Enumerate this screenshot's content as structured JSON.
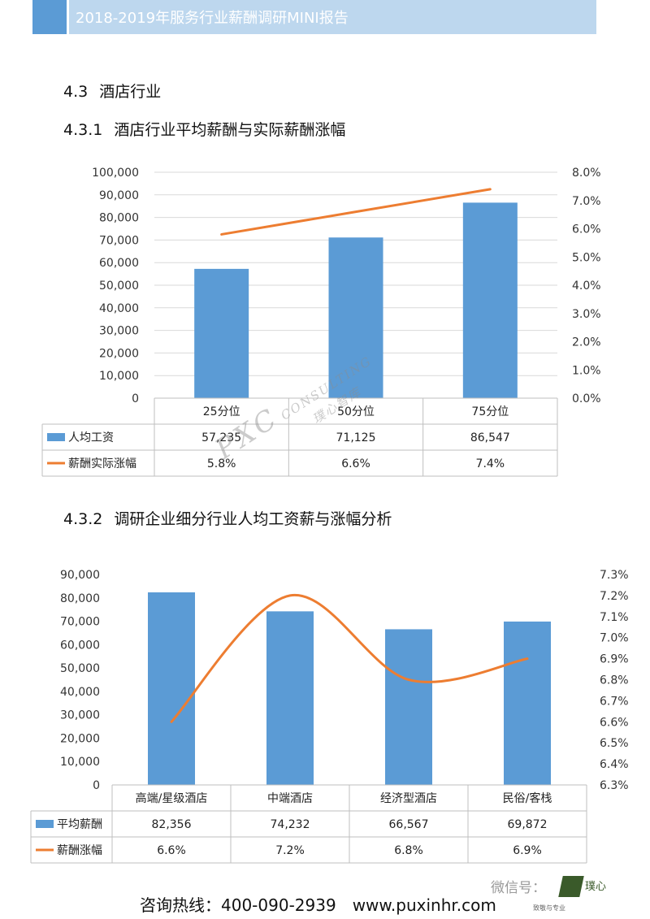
{
  "header": {
    "title": "2018-2019年服务行业薪酬调研MINI报告"
  },
  "section": {
    "num": "4.3",
    "title": "酒店行业"
  },
  "sub1": {
    "num": "4.3.1",
    "title": "酒店行业平均薪酬与实际薪酬涨幅"
  },
  "sub2": {
    "num": "4.3.2",
    "title": "调研企业细分行业人均工资薪与涨幅分析"
  },
  "chart_data": [
    {
      "type": "bar",
      "categories": [
        "25分位",
        "50分位",
        "75分位"
      ],
      "series": [
        {
          "name": "人均工资",
          "type": "bar",
          "axis": "left",
          "values": [
            57235,
            71125,
            86547
          ],
          "labels": [
            "57,235",
            "71,125",
            "86,547"
          ],
          "color": "#5b9bd5"
        },
        {
          "name": "薪酬实际涨幅",
          "type": "line",
          "axis": "right",
          "values": [
            5.8,
            6.6,
            7.4
          ],
          "labels": [
            "5.8%",
            "6.6%",
            "7.4%"
          ],
          "color": "#ed7d31"
        }
      ],
      "ylim": [
        0,
        100000
      ],
      "yticks": [
        "0",
        "10,000",
        "20,000",
        "30,000",
        "40,000",
        "50,000",
        "60,000",
        "70,000",
        "80,000",
        "90,000",
        "100,000"
      ],
      "y2lim": [
        0,
        8
      ],
      "y2ticks": [
        "0.0%",
        "1.0%",
        "2.0%",
        "3.0%",
        "4.0%",
        "5.0%",
        "6.0%",
        "7.0%",
        "8.0%"
      ],
      "grid": true,
      "legend": "data-table"
    },
    {
      "type": "bar",
      "categories": [
        "高端/星级酒店",
        "中端酒店",
        "经济型酒店",
        "民俗/客栈"
      ],
      "series": [
        {
          "name": "平均薪酬",
          "type": "bar",
          "axis": "left",
          "values": [
            82356,
            74232,
            66567,
            69872
          ],
          "labels": [
            "82,356",
            "74,232",
            "66,567",
            "69,872"
          ],
          "color": "#5b9bd5"
        },
        {
          "name": "薪酬涨幅",
          "type": "line",
          "axis": "right",
          "smooth": true,
          "values": [
            6.6,
            7.2,
            6.8,
            6.9
          ],
          "labels": [
            "6.6%",
            "7.2%",
            "6.8%",
            "6.9%"
          ],
          "color": "#ed7d31"
        }
      ],
      "ylim": [
        0,
        90000
      ],
      "yticks": [
        "0",
        "10,000",
        "20,000",
        "30,000",
        "40,000",
        "50,000",
        "60,000",
        "70,000",
        "80,000",
        "90,000"
      ],
      "y2lim": [
        6.3,
        7.3
      ],
      "y2ticks": [
        "6.3%",
        "6.4%",
        "6.5%",
        "6.6%",
        "6.7%",
        "6.8%",
        "6.9%",
        "7.0%",
        "7.1%",
        "7.2%",
        "7.3%"
      ],
      "grid": false,
      "legend": "data-table"
    }
  ],
  "watermark": {
    "text1": "PXC",
    "text2": "CONSULTING",
    "text3": "璞心智库"
  },
  "footer": {
    "contact": "咨询热线：400-090-2939",
    "url": "www.puxinhr.com"
  },
  "wechat_label": "微信号：",
  "logo": {
    "name": "璞心",
    "tagline": "致敬与专业"
  }
}
